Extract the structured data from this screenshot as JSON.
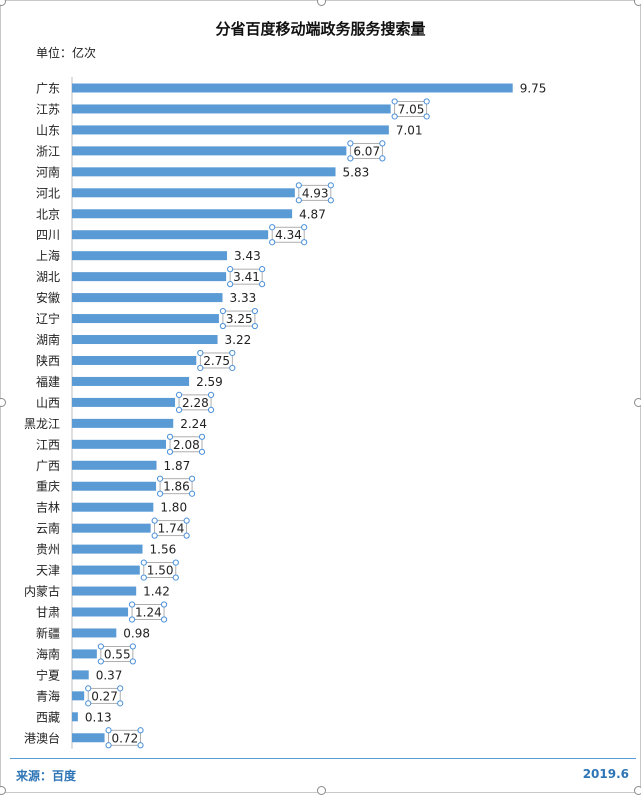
{
  "chart_data": {
    "type": "bar",
    "orientation": "horizontal",
    "title": "分省百度移动端政务服务搜索量",
    "unit_label": "单位：亿次",
    "categories": [
      "广东",
      "江苏",
      "山东",
      "浙江",
      "河南",
      "河北",
      "北京",
      "四川",
      "上海",
      "湖北",
      "安徽",
      "辽宁",
      "湖南",
      "陕西",
      "福建",
      "山西",
      "黑龙江",
      "江西",
      "广西",
      "重庆",
      "吉林",
      "云南",
      "贵州",
      "天津",
      "内蒙古",
      "甘肃",
      "新疆",
      "海南",
      "宁夏",
      "青海",
      "西藏",
      "港澳台"
    ],
    "values": [
      9.75,
      7.05,
      7.01,
      6.07,
      5.83,
      4.93,
      4.87,
      4.34,
      3.43,
      3.41,
      3.33,
      3.25,
      3.22,
      2.75,
      2.59,
      2.28,
      2.24,
      2.08,
      1.87,
      1.86,
      1.8,
      1.74,
      1.56,
      1.5,
      1.42,
      1.24,
      0.98,
      0.55,
      0.37,
      0.27,
      0.13,
      0.72
    ],
    "value_labels": [
      "9.75",
      "7.05",
      "7.01",
      "6.07",
      "5.83",
      "4.93",
      "4.87",
      "4.34",
      "3.43",
      "3.41",
      "3.33",
      "3.25",
      "3.22",
      "2.75",
      "2.59",
      "2.28",
      "2.24",
      "2.08",
      "1.87",
      "1.86",
      "1.80",
      "1.74",
      "1.56",
      "1.50",
      "1.42",
      "1.24",
      "0.98",
      "0.55",
      "0.37",
      "0.27",
      "0.13",
      "0.72"
    ],
    "xlim": [
      0,
      10
    ],
    "bar_color": "#5b9bd5",
    "grid": false,
    "legend": "none"
  },
  "footer": {
    "source": "来源：百度",
    "date": "2019.6"
  }
}
